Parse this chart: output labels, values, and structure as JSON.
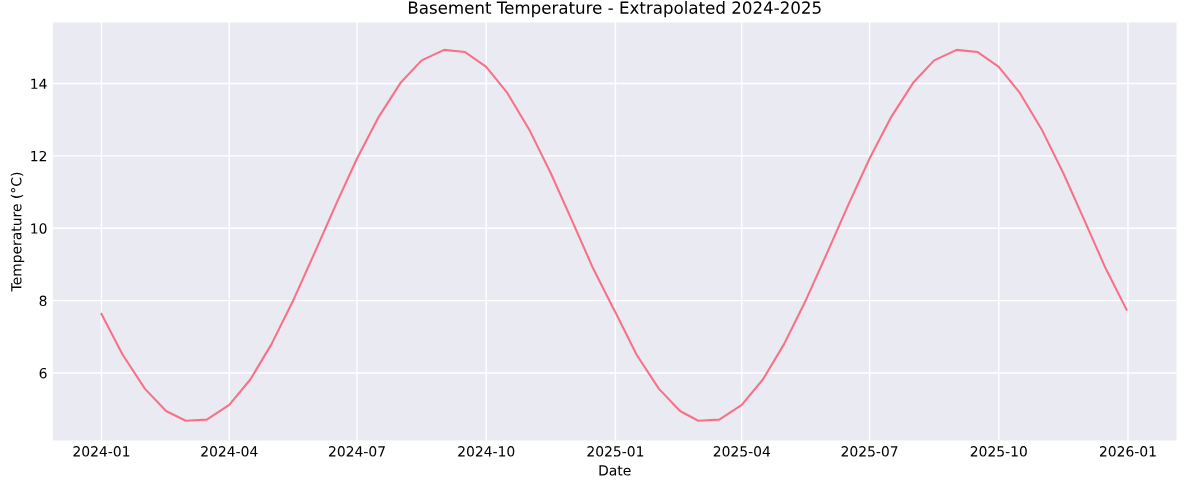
{
  "chart_data": {
    "type": "line",
    "title": "Basement Temperature - Extrapolated 2024-2025",
    "xlabel": "Date",
    "ylabel": "Temperature (°C)",
    "x": [
      "2024-01-01",
      "2024-01-16",
      "2024-02-01",
      "2024-02-16",
      "2024-03-01",
      "2024-03-16",
      "2024-04-01",
      "2024-04-16",
      "2024-05-01",
      "2024-05-16",
      "2024-06-01",
      "2024-06-16",
      "2024-07-01",
      "2024-07-16",
      "2024-08-01",
      "2024-08-16",
      "2024-09-01",
      "2024-09-16",
      "2024-10-01",
      "2024-10-16",
      "2024-11-01",
      "2024-11-16",
      "2024-12-01",
      "2024-12-16",
      "2024-12-31",
      "2025-01-01",
      "2025-01-16",
      "2025-02-01",
      "2025-02-16",
      "2025-03-01",
      "2025-03-16",
      "2025-04-01",
      "2025-04-16",
      "2025-05-01",
      "2025-05-16",
      "2025-06-01",
      "2025-06-16",
      "2025-07-01",
      "2025-07-16",
      "2025-08-01",
      "2025-08-16",
      "2025-09-01",
      "2025-09-16",
      "2025-10-01",
      "2025-10-16",
      "2025-11-01",
      "2025-11-16",
      "2025-12-01",
      "2025-12-16",
      "2025-12-31"
    ],
    "series": [
      {
        "color": "#f77189",
        "values": [
          7.63,
          6.51,
          5.56,
          4.95,
          4.68,
          4.71,
          5.12,
          5.82,
          6.79,
          7.96,
          9.34,
          10.66,
          11.93,
          13.05,
          14.02,
          14.64,
          14.93,
          14.87,
          14.46,
          13.74,
          12.7,
          11.52,
          10.22,
          8.9,
          7.75,
          7.68,
          6.51,
          5.56,
          4.95,
          4.68,
          4.71,
          5.12,
          5.82,
          6.79,
          7.96,
          9.34,
          10.66,
          11.93,
          13.05,
          14.02,
          14.64,
          14.93,
          14.87,
          14.46,
          13.74,
          12.7,
          11.52,
          10.22,
          8.9,
          7.75
        ]
      }
    ],
    "xlim": [
      "2023-11-27",
      "2026-02-05"
    ],
    "xticks": [
      {
        "value": "2024-01-01",
        "label": "2024-01"
      },
      {
        "value": "2024-04-01",
        "label": "2024-04"
      },
      {
        "value": "2024-07-01",
        "label": "2024-07"
      },
      {
        "value": "2024-10-01",
        "label": "2024-10"
      },
      {
        "value": "2025-01-01",
        "label": "2025-01"
      },
      {
        "value": "2025-04-01",
        "label": "2025-04"
      },
      {
        "value": "2025-07-01",
        "label": "2025-07"
      },
      {
        "value": "2025-10-01",
        "label": "2025-10"
      },
      {
        "value": "2026-01-01",
        "label": "2026-01"
      }
    ],
    "ylim": [
      4.12,
      15.7
    ],
    "yticks": [
      6,
      8,
      10,
      12,
      14
    ],
    "grid": true,
    "marker": "none",
    "line_style": "solid"
  }
}
